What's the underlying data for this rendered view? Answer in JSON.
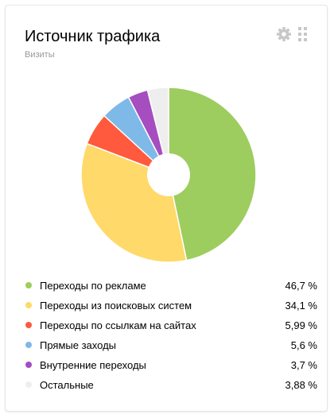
{
  "widget": {
    "title": "Источник трафика",
    "subtitle": "Визиты",
    "icons": {
      "settings": "gear-icon",
      "drag": "drag-handle-icon"
    },
    "icon_color": "#c8c8c8"
  },
  "chart_data": {
    "type": "pie",
    "title": "Источник трафика",
    "subtitle": "Визиты",
    "slices": [
      {
        "label": "Переходы по рекламе",
        "value": 46.7,
        "display": "46,7 %",
        "color": "#9dcd5f"
      },
      {
        "label": "Переходы из поисковых систем",
        "value": 34.1,
        "display": "34,1 %",
        "color": "#ffd969"
      },
      {
        "label": "Переходы по ссылкам на сайтах",
        "value": 5.99,
        "display": "5,99 %",
        "color": "#ff5a3d"
      },
      {
        "label": "Прямые заходы",
        "value": 5.6,
        "display": "5,6 %",
        "color": "#7fb9e8"
      },
      {
        "label": "Внутренние переходы",
        "value": 3.7,
        "display": "3,7 %",
        "color": "#a64dc0"
      },
      {
        "label": "Остальные",
        "value": 3.88,
        "display": "3,88 %",
        "color": "#eeeeee"
      }
    ],
    "legend_position": "bottom"
  }
}
